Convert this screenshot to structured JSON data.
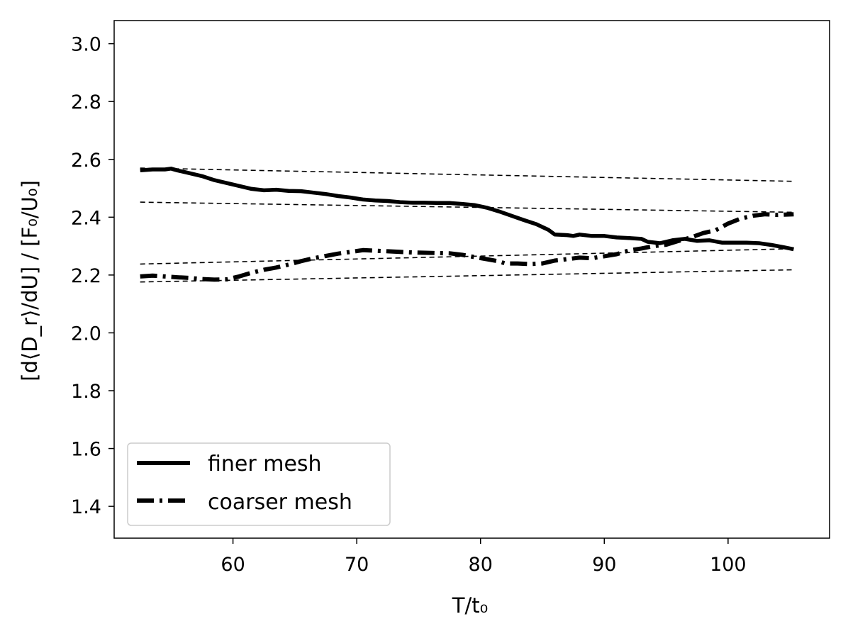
{
  "chart_data": {
    "type": "line",
    "title": "",
    "xlabel": "T/t₀",
    "ylabel": "[d⟨D_r⟩/dU] / [F₀/U₀]",
    "xlim": [
      50.4,
      108.2
    ],
    "ylim": [
      1.29,
      3.08
    ],
    "xticks": [
      60,
      70,
      80,
      90,
      100
    ],
    "yticks": [
      1.4,
      1.6,
      1.8,
      2.0,
      2.2,
      2.4,
      2.6,
      2.8,
      3.0
    ],
    "xtick_labels": [
      "60",
      "70",
      "80",
      "90",
      "100"
    ],
    "ytick_labels": [
      "1.4",
      "1.6",
      "1.8",
      "2.0",
      "2.2",
      "2.4",
      "2.6",
      "2.8",
      "3.0"
    ],
    "grid": false,
    "legend_position": "lower-left",
    "series": [
      {
        "name": "finer mesh",
        "style": "solid",
        "x": [
          52.5,
          53.5,
          54.5,
          55.0,
          55.5,
          56.5,
          57.5,
          58.5,
          59.5,
          60.5,
          61.5,
          62.5,
          63.5,
          64.5,
          65.5,
          66.5,
          67.5,
          68.5,
          69.5,
          70.5,
          71.5,
          72.5,
          73.5,
          74.5,
          75.5,
          76.5,
          77.5,
          78.5,
          79.5,
          80.5,
          81.5,
          82.5,
          83.5,
          84.5,
          85.5,
          86.0,
          87.0,
          87.5,
          88.0,
          89.0,
          90.0,
          91.0,
          92.0,
          93.0,
          93.5,
          94.5,
          95.5,
          96.5,
          97.5,
          98.5,
          99.5,
          100.5,
          101.5,
          102.5,
          103.5,
          104.5,
          105.3
        ],
        "y": [
          2.562,
          2.565,
          2.565,
          2.568,
          2.562,
          2.552,
          2.542,
          2.528,
          2.518,
          2.508,
          2.498,
          2.493,
          2.495,
          2.491,
          2.49,
          2.485,
          2.48,
          2.473,
          2.468,
          2.461,
          2.458,
          2.456,
          2.452,
          2.45,
          2.45,
          2.449,
          2.449,
          2.446,
          2.442,
          2.433,
          2.42,
          2.405,
          2.39,
          2.376,
          2.356,
          2.34,
          2.338,
          2.335,
          2.34,
          2.335,
          2.335,
          2.33,
          2.328,
          2.325,
          2.315,
          2.31,
          2.32,
          2.325,
          2.318,
          2.32,
          2.312,
          2.312,
          2.312,
          2.31,
          2.304,
          2.296,
          2.289
        ]
      },
      {
        "name": "coarser mesh",
        "style": "dashdot",
        "x": [
          52.5,
          53.5,
          54.5,
          55.5,
          56.5,
          57.5,
          58.5,
          59.5,
          60.5,
          61.5,
          62.5,
          63.5,
          64.5,
          65.5,
          66.5,
          67.5,
          68.5,
          69.5,
          70.5,
          71.5,
          72.5,
          73.5,
          74.5,
          75.5,
          76.5,
          77.5,
          78.5,
          79.5,
          80.5,
          81.5,
          82.0,
          83.0,
          84.0,
          85.0,
          86.0,
          87.0,
          88.0,
          89.0,
          90.0,
          91.0,
          92.0,
          93.0,
          94.0,
          95.0,
          96.0,
          97.0,
          98.0,
          99.0,
          100.0,
          101.0,
          102.0,
          103.0,
          104.0,
          105.3
        ],
        "y": [
          2.195,
          2.198,
          2.195,
          2.192,
          2.19,
          2.186,
          2.184,
          2.185,
          2.195,
          2.208,
          2.218,
          2.226,
          2.236,
          2.248,
          2.258,
          2.266,
          2.274,
          2.28,
          2.286,
          2.284,
          2.282,
          2.28,
          2.278,
          2.277,
          2.276,
          2.275,
          2.27,
          2.262,
          2.255,
          2.247,
          2.24,
          2.24,
          2.238,
          2.24,
          2.25,
          2.255,
          2.26,
          2.258,
          2.265,
          2.272,
          2.285,
          2.292,
          2.3,
          2.305,
          2.318,
          2.33,
          2.345,
          2.355,
          2.378,
          2.395,
          2.405,
          2.41,
          2.408,
          2.41
        ]
      },
      {
        "name": "",
        "style": "dashed",
        "x": [
          52.5,
          105.3
        ],
        "y": [
          2.57,
          2.524
        ]
      },
      {
        "name": "",
        "style": "dashed",
        "x": [
          52.5,
          105.3
        ],
        "y": [
          2.452,
          2.417
        ]
      },
      {
        "name": "",
        "style": "dashed",
        "x": [
          52.5,
          105.3
        ],
        "y": [
          2.238,
          2.291
        ]
      },
      {
        "name": "",
        "style": "dashed",
        "x": [
          52.5,
          105.3
        ],
        "y": [
          2.176,
          2.218
        ]
      }
    ]
  }
}
